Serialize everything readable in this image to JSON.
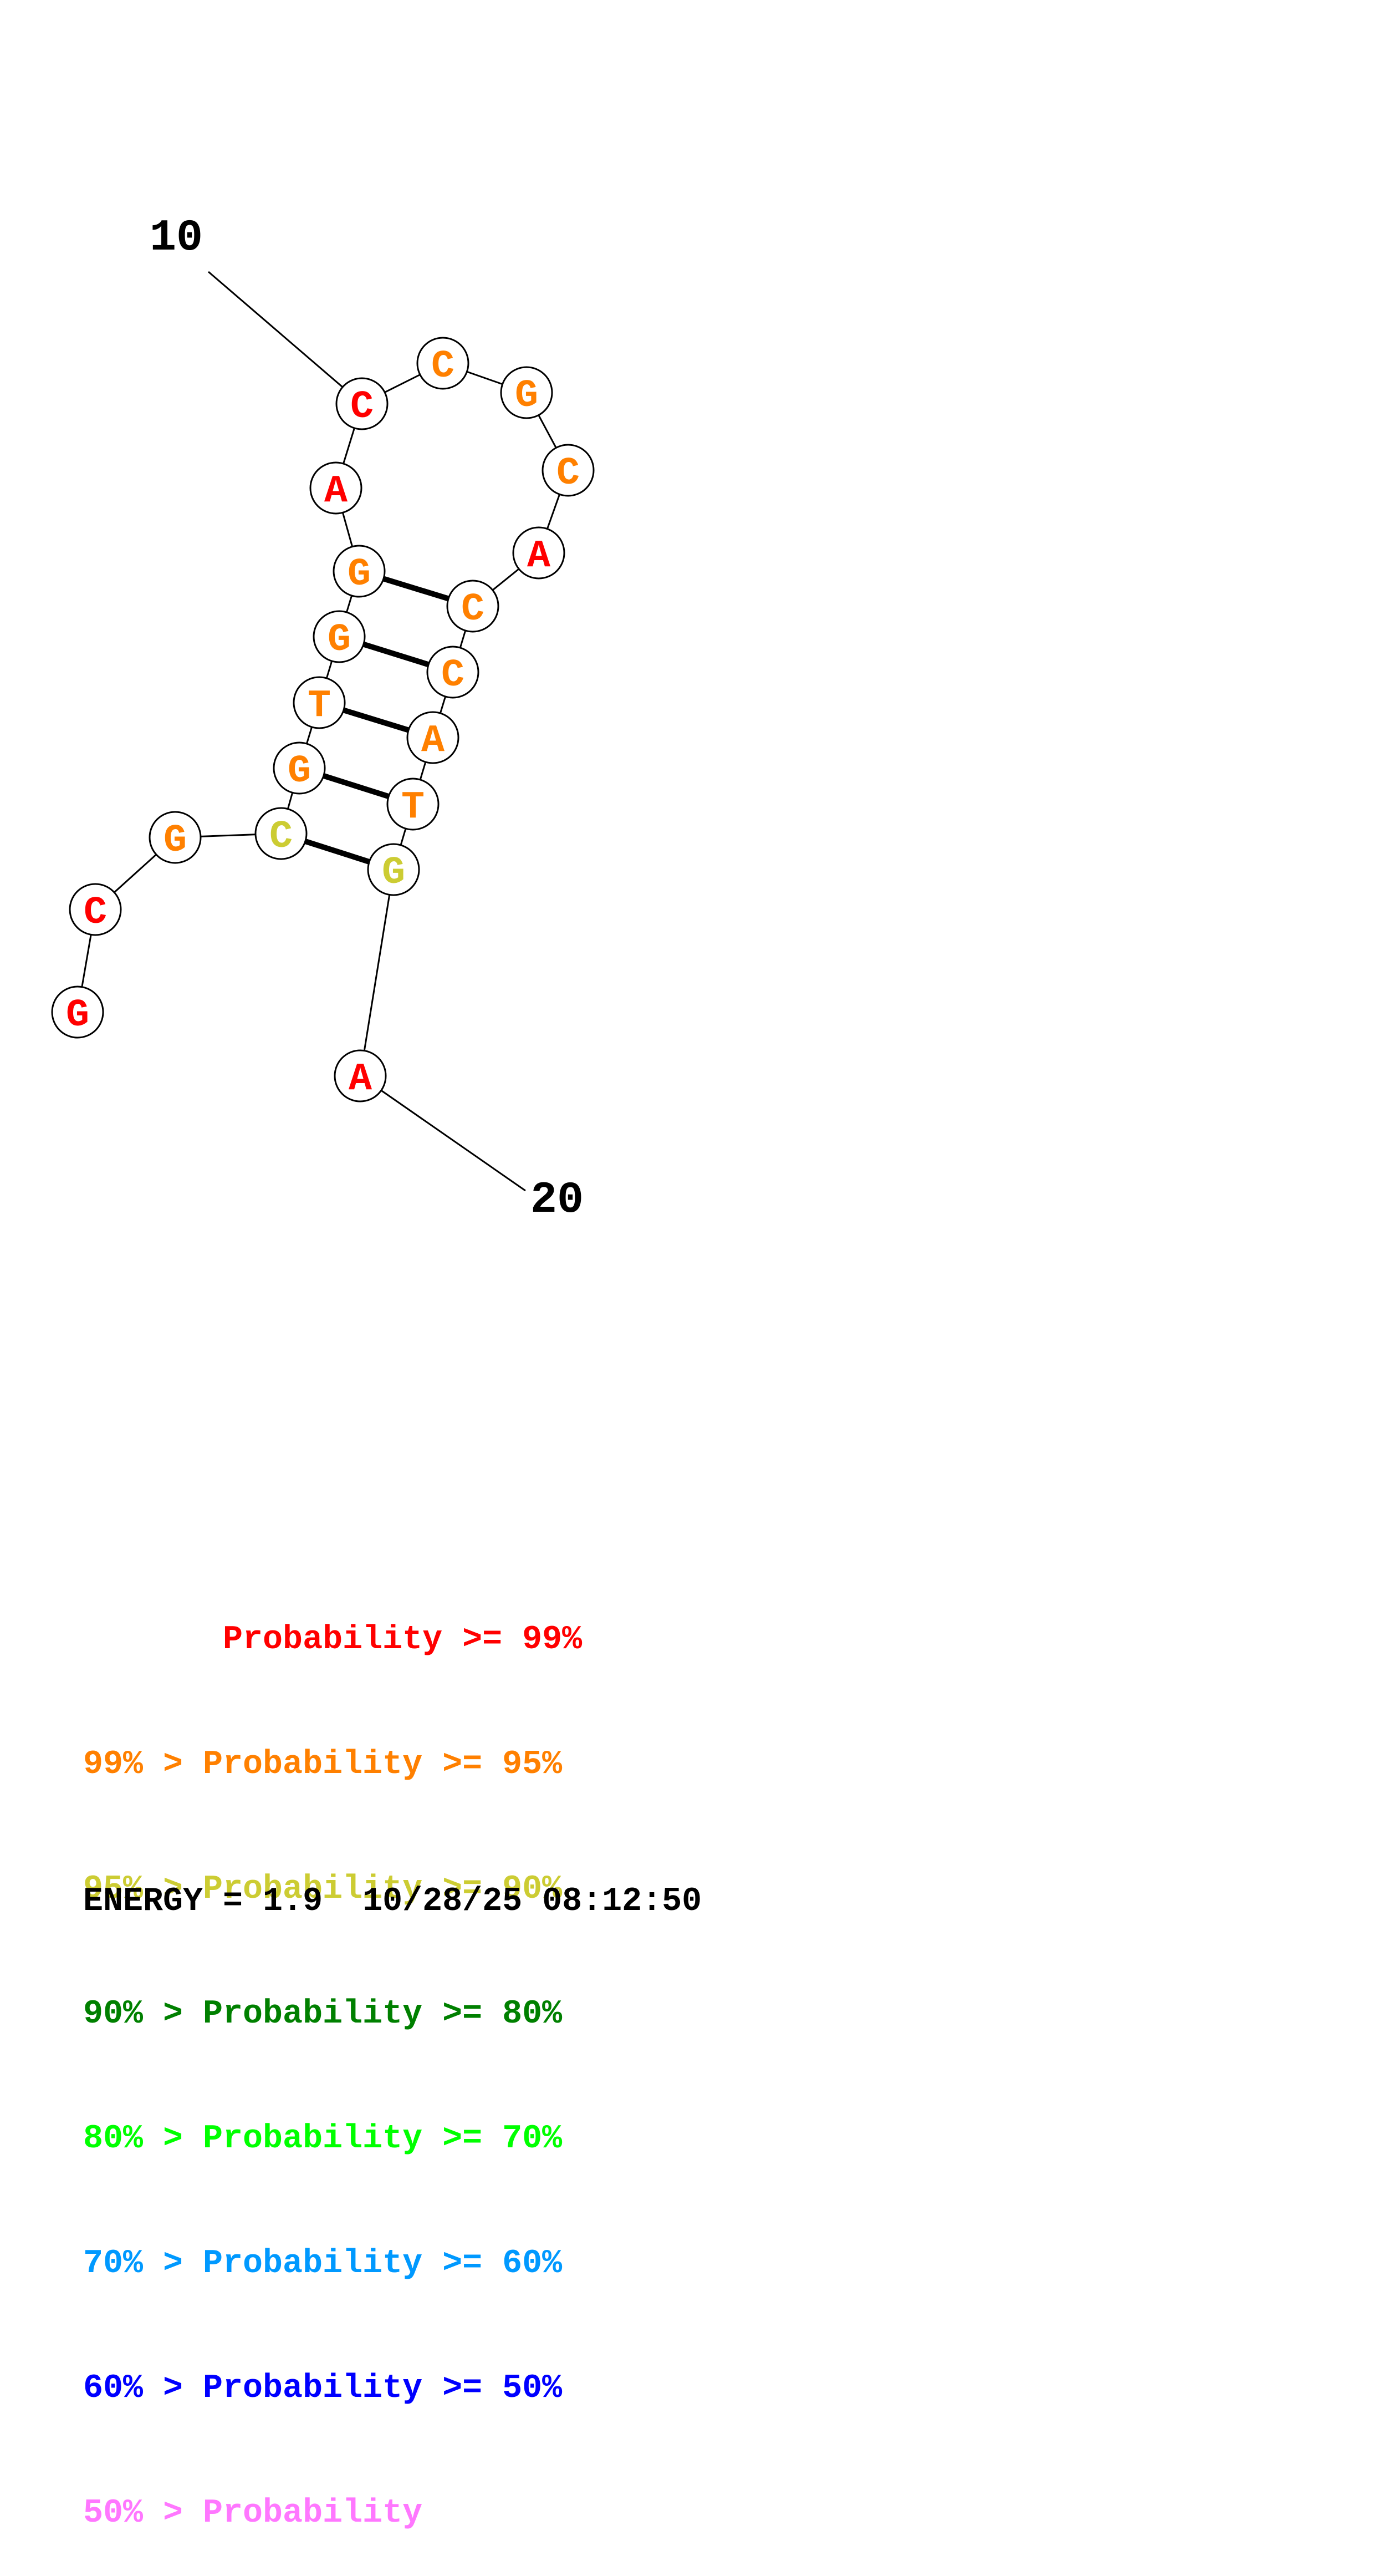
{
  "structure": {
    "position_labels": [
      "10",
      "20"
    ],
    "nucleotides": [
      {
        "base": "G",
        "prob_class": "ge99"
      },
      {
        "base": "C",
        "prob_class": "ge99"
      },
      {
        "base": "G",
        "prob_class": "ge95"
      },
      {
        "base": "C",
        "prob_class": "ge90"
      },
      {
        "base": "G",
        "prob_class": "ge95"
      },
      {
        "base": "T",
        "prob_class": "ge95"
      },
      {
        "base": "G",
        "prob_class": "ge95"
      },
      {
        "base": "G",
        "prob_class": "ge95"
      },
      {
        "base": "A",
        "prob_class": "ge99"
      },
      {
        "base": "C",
        "prob_class": "ge99"
      },
      {
        "base": "C",
        "prob_class": "ge95"
      },
      {
        "base": "G",
        "prob_class": "ge95"
      },
      {
        "base": "C",
        "prob_class": "ge95"
      },
      {
        "base": "A",
        "prob_class": "ge99"
      },
      {
        "base": "C",
        "prob_class": "ge95"
      },
      {
        "base": "C",
        "prob_class": "ge95"
      },
      {
        "base": "A",
        "prob_class": "ge95"
      },
      {
        "base": "T",
        "prob_class": "ge95"
      },
      {
        "base": "G",
        "prob_class": "ge90"
      },
      {
        "base": "A",
        "prob_class": "ge99"
      }
    ],
    "base_pairs": [
      [
        3,
        18
      ],
      [
        4,
        17
      ],
      [
        5,
        16
      ],
      [
        6,
        15
      ],
      [
        7,
        14
      ]
    ]
  },
  "colors": {
    "ge99": "#ff0000",
    "ge95": "#ff8000",
    "ge90": "#cccc33",
    "ge80": "#008000",
    "ge70": "#00ff00",
    "ge60": "#0099ff",
    "ge50": "#0000ff",
    "lt50": "#ff77ff"
  },
  "legend": {
    "rows": [
      {
        "text": "       Probability >= 99%",
        "color_key": "ge99"
      },
      {
        "text": "99% > Probability >= 95%",
        "color_key": "ge95"
      },
      {
        "text": "95% > Probability >= 90%",
        "color_key": "ge90"
      },
      {
        "text": "90% > Probability >= 80%",
        "color_key": "ge80"
      },
      {
        "text": "80% > Probability >= 70%",
        "color_key": "ge70"
      },
      {
        "text": "70% > Probability >= 60%",
        "color_key": "ge60"
      },
      {
        "text": "60% > Probability >= 50%",
        "color_key": "ge50"
      },
      {
        "text": "50% > Probability",
        "color_key": "lt50"
      }
    ]
  },
  "footer": {
    "energy_text": "ENERGY = 1.9  10/28/25 08:12:50"
  }
}
